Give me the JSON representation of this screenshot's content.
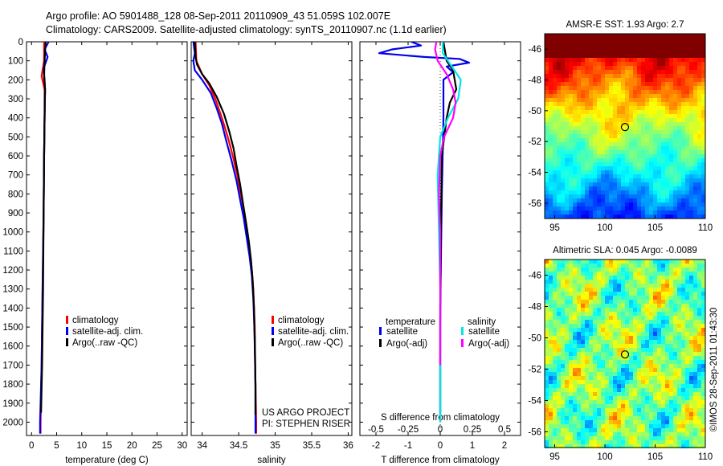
{
  "header": {
    "line1": "Argo profile: AO 5901488_128 08-Sep-2011 20110909_43 51.059S 102.007E",
    "line2": "Climatology: CARS2009. Satellite-adjusted climatology: synTS_20110907.nc (1.1d earlier)"
  },
  "project_credit": {
    "line1": "US ARGO PROJECT",
    "line2": "PI: STEPHEN RISER"
  },
  "side_stamp": "©IMOS 28-Sep-2011 01:43:30",
  "colors": {
    "red": "#ff0000",
    "blue": "#0000ee",
    "black": "#000000",
    "cyan": "#00e5e5",
    "magenta": "#ff00ff"
  },
  "chart_data": [
    {
      "type": "line",
      "id": "temperature",
      "xlabel": "temperature (deg C)",
      "ylabel": "",
      "xlim": [
        -1,
        31
      ],
      "ylim": [
        2070,
        0
      ],
      "xticks": [
        0,
        5,
        10,
        15,
        20,
        25,
        30
      ],
      "yticks": [
        0,
        100,
        200,
        300,
        400,
        500,
        600,
        700,
        800,
        900,
        1000,
        1100,
        1200,
        1300,
        1400,
        1500,
        1600,
        1700,
        1800,
        1900,
        2000
      ],
      "legend": {
        "placement": "center-left",
        "entries": [
          "climatology",
          "satellite-adj. clim.",
          "Argo(..raw -QC)"
        ]
      },
      "series": [
        {
          "name": "climatology",
          "color": "red",
          "points": [
            [
              2.5,
              0
            ],
            [
              2.5,
              100
            ],
            [
              2.0,
              180
            ],
            [
              2.6,
              250
            ],
            [
              2.6,
              400
            ],
            [
              2.5,
              600
            ],
            [
              2.4,
              900
            ],
            [
              2.2,
              1300
            ],
            [
              2.0,
              1700
            ],
            [
              1.8,
              2000
            ],
            [
              1.8,
              2060
            ]
          ]
        },
        {
          "name": "satellite-adj. clim.",
          "color": "blue",
          "points": [
            [
              3.4,
              0
            ],
            [
              2.6,
              40
            ],
            [
              3.2,
              80
            ],
            [
              2.4,
              140
            ],
            [
              2.6,
              200
            ],
            [
              2.7,
              250
            ],
            [
              2.6,
              400
            ],
            [
              2.5,
              600
            ],
            [
              2.4,
              900
            ],
            [
              2.2,
              1300
            ],
            [
              2.0,
              1700
            ],
            [
              1.7,
              2000
            ],
            [
              1.7,
              2060
            ]
          ]
        },
        {
          "name": "Argo(..raw -QC)",
          "color": "black",
          "points": [
            [
              2.8,
              0
            ],
            [
              2.6,
              100
            ],
            [
              2.5,
              180
            ],
            [
              2.7,
              250
            ],
            [
              2.6,
              400
            ],
            [
              2.5,
              600
            ],
            [
              2.4,
              900
            ],
            [
              2.3,
              1300
            ],
            [
              2.1,
              1700
            ],
            [
              1.9,
              1950
            ]
          ]
        }
      ]
    },
    {
      "type": "line",
      "id": "salinity",
      "xlabel": "salinity",
      "ylabel": "",
      "xlim": [
        33.85,
        36.05
      ],
      "ylim": [
        2070,
        0
      ],
      "xticks": [
        34,
        34.5,
        35,
        35.5,
        36
      ],
      "xticklabels": [
        "34",
        "34.5",
        "35",
        "35.5",
        "36"
      ],
      "yticks": [
        0,
        100,
        200,
        300,
        400,
        500,
        600,
        700,
        800,
        900,
        1000,
        1100,
        1200,
        1300,
        1400,
        1500,
        1600,
        1700,
        1800,
        1900,
        2000
      ],
      "legend": {
        "placement": "center-right",
        "entries": [
          "climatology",
          "satellite-adj. clim.",
          "Argo(..raw -QC)"
        ]
      },
      "series": [
        {
          "name": "climatology",
          "color": "red",
          "points": [
            [
              33.91,
              0
            ],
            [
              33.92,
              100
            ],
            [
              34.0,
              170
            ],
            [
              34.1,
              230
            ],
            [
              34.18,
              300
            ],
            [
              34.27,
              400
            ],
            [
              34.35,
              500
            ],
            [
              34.42,
              600
            ],
            [
              34.48,
              700
            ],
            [
              34.53,
              800
            ],
            [
              34.58,
              900
            ],
            [
              34.62,
              1000
            ],
            [
              34.65,
              1100
            ],
            [
              34.68,
              1200
            ],
            [
              34.7,
              1300
            ],
            [
              34.72,
              1500
            ],
            [
              34.73,
              1800
            ],
            [
              34.74,
              2000
            ],
            [
              34.74,
              2060
            ]
          ]
        },
        {
          "name": "satellite-adj. clim.",
          "color": "blue",
          "points": [
            [
              33.88,
              0
            ],
            [
              33.9,
              60
            ],
            [
              33.88,
              100
            ],
            [
              33.9,
              150
            ],
            [
              34.0,
              200
            ],
            [
              34.12,
              270
            ],
            [
              34.2,
              350
            ],
            [
              34.27,
              430
            ],
            [
              34.33,
              520
            ],
            [
              34.4,
              620
            ],
            [
              34.47,
              730
            ],
            [
              34.52,
              830
            ],
            [
              34.57,
              930
            ],
            [
              34.61,
              1030
            ],
            [
              34.65,
              1130
            ],
            [
              34.68,
              1230
            ],
            [
              34.7,
              1350
            ],
            [
              34.72,
              1550
            ],
            [
              34.73,
              1800
            ],
            [
              34.73,
              2000
            ],
            [
              34.73,
              2060
            ]
          ]
        },
        {
          "name": "Argo(..raw -QC)",
          "color": "black",
          "points": [
            [
              33.9,
              0
            ],
            [
              33.91,
              80
            ],
            [
              33.93,
              120
            ],
            [
              34.0,
              170
            ],
            [
              34.1,
              220
            ],
            [
              34.2,
              290
            ],
            [
              34.3,
              380
            ],
            [
              34.37,
              470
            ],
            [
              34.43,
              560
            ],
            [
              34.47,
              650
            ],
            [
              34.52,
              750
            ],
            [
              34.56,
              850
            ],
            [
              34.6,
              950
            ],
            [
              34.64,
              1050
            ],
            [
              34.67,
              1150
            ],
            [
              34.69,
              1250
            ],
            [
              34.71,
              1400
            ],
            [
              34.72,
              1600
            ],
            [
              34.73,
              1800
            ],
            [
              34.73,
              1960
            ]
          ]
        }
      ]
    },
    {
      "type": "line",
      "id": "difference",
      "xlabel": "T difference from climatology",
      "xlabel2": "S difference from climatology",
      "ylabel": "",
      "xlim": [
        -2.5,
        2.5
      ],
      "xlim_S": [
        -0.625,
        0.625
      ],
      "ylim": [
        2070,
        0
      ],
      "xticks": [
        -2,
        -1,
        0,
        1,
        2
      ],
      "xticks_S": [
        "-0.5",
        "-0.25",
        "0",
        "0.25",
        "0.5"
      ],
      "yticks": [
        0,
        100,
        200,
        300,
        400,
        500,
        600,
        700,
        800,
        900,
        1000,
        1100,
        1200,
        1300,
        1400,
        1500,
        1600,
        1700,
        1800,
        1900,
        2000
      ],
      "legend": {
        "placement": "center",
        "headings": [
          "temperature",
          "salinity"
        ],
        "entries_T": [
          "satellite",
          "Argo(-adj)"
        ],
        "entries_S": [
          "satellite",
          "Argo(-adj)"
        ]
      },
      "series": [
        {
          "name": "satellite",
          "group": "temperature",
          "color": "blue",
          "points": [
            [
              -0.9,
              0
            ],
            [
              -0.6,
              20
            ],
            [
              -1.5,
              40
            ],
            [
              -1.9,
              60
            ],
            [
              -0.5,
              80
            ],
            [
              0.6,
              90
            ],
            [
              0.9,
              110
            ],
            [
              0.2,
              130
            ],
            [
              0.4,
              160
            ],
            [
              0.1,
              200
            ],
            [
              0.1,
              400
            ],
            [
              0.05,
              800
            ],
            [
              0.0,
              1400
            ],
            [
              0.0,
              2000
            ]
          ]
        },
        {
          "name": "Argo(-adj)",
          "group": "temperature",
          "color": "black",
          "points": [
            [
              0.1,
              0
            ],
            [
              0.2,
              100
            ],
            [
              0.4,
              150
            ],
            [
              0.5,
              250
            ],
            [
              0.3,
              320
            ],
            [
              0.2,
              400
            ],
            [
              0.05,
              600
            ],
            [
              0.02,
              1000
            ],
            [
              0.0,
              1500
            ],
            [
              0.0,
              1950
            ]
          ]
        },
        {
          "name": "satellite",
          "group": "salinity",
          "color": "cyan",
          "points": [
            [
              0.02,
              0
            ],
            [
              0.02,
              60
            ],
            [
              0.08,
              120
            ],
            [
              0.16,
              200
            ],
            [
              0.14,
              300
            ],
            [
              0.06,
              400
            ],
            [
              0.0,
              500
            ],
            [
              -0.02,
              700
            ],
            [
              -0.01,
              1000
            ],
            [
              0.0,
              1300
            ],
            [
              0.0,
              1600
            ],
            [
              0.0,
              2000
            ]
          ]
        },
        {
          "name": "Argo(-adj)",
          "group": "salinity",
          "color": "magenta",
          "points": [
            [
              -0.03,
              0
            ],
            [
              -0.04,
              40
            ],
            [
              -0.02,
              100
            ],
            [
              0.05,
              170
            ],
            [
              0.1,
              250
            ],
            [
              0.12,
              320
            ],
            [
              0.1,
              400
            ],
            [
              0.03,
              500
            ],
            [
              0.0,
              600
            ],
            [
              -0.01,
              800
            ],
            [
              0.0,
              1000
            ],
            [
              0.0,
              1400
            ],
            [
              0.0,
              1700
            ]
          ]
        }
      ]
    },
    {
      "type": "heatmap",
      "id": "sst_map",
      "title": "AMSR-E SST: 1.93 Argo: 2.7",
      "xlim": [
        94,
        110
      ],
      "ylim": [
        -57,
        -45
      ],
      "xticks": [
        95,
        100,
        105,
        110
      ],
      "yticks": [
        -46,
        -48,
        -50,
        -52,
        -54,
        -56
      ],
      "marker": {
        "lon": 102.0,
        "lat": -51.06
      }
    },
    {
      "type": "heatmap",
      "id": "sla_map",
      "title": "Altimetric SLA: 0.045 Argo: -0.0089",
      "xlim": [
        94,
        110
      ],
      "ylim": [
        -57,
        -45
      ],
      "xticks": [
        95,
        100,
        105,
        110
      ],
      "yticks": [
        -46,
        -48,
        -50,
        -52,
        -54,
        -56
      ],
      "marker": {
        "lon": 102.0,
        "lat": -51.06
      }
    }
  ]
}
